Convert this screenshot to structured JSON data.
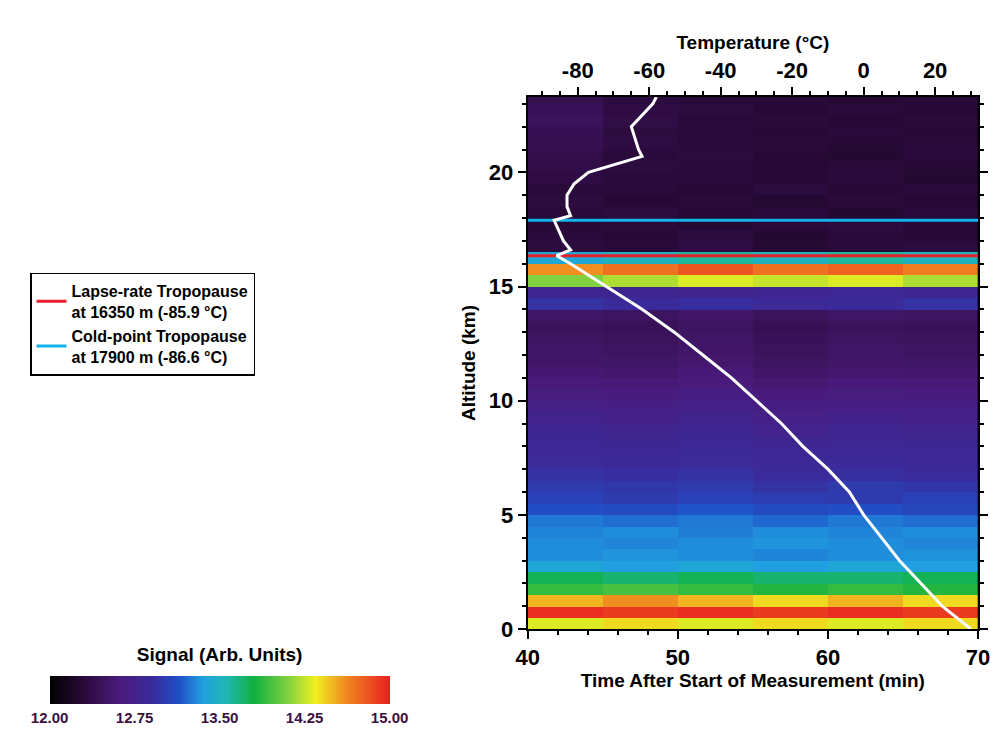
{
  "chart_data": {
    "type": "heatmap",
    "xlabel": "Time After Start of Measurement (min)",
    "ylabel": "Altitude (km)",
    "x2label": "Temperature (°C)",
    "xlim": [
      40,
      70
    ],
    "xticks": [
      40,
      50,
      60,
      70
    ],
    "ylim": [
      0,
      23.3
    ],
    "yticks": [
      0,
      5,
      10,
      15,
      20
    ],
    "x2lim": [
      -94,
      32
    ],
    "x2ticks": [
      -80,
      -60,
      -40,
      -20,
      0,
      20
    ],
    "legend": "left",
    "grid": false,
    "heatmap": {
      "x": [
        42.5,
        47.5,
        52.5,
        57.5,
        62.5,
        67.5
      ],
      "y": [
        0.25,
        0.75,
        1.25,
        1.75,
        2.25,
        2.75,
        3.25,
        3.75,
        4.25,
        4.75,
        5.25,
        5.75,
        6.25,
        6.75,
        7.25,
        7.75,
        8.25,
        8.75,
        9.25,
        9.75,
        10.25,
        10.75,
        11.25,
        11.75,
        12.25,
        12.75,
        13.25,
        13.75,
        14.25,
        14.75,
        15.25,
        15.75,
        16.25,
        16.75,
        17.25,
        17.75,
        18.25,
        18.75,
        19.25,
        19.75,
        20.25,
        20.75,
        21.25,
        21.75,
        22.25,
        22.75,
        23.25
      ],
      "z": [
        [
          14.3,
          14.4,
          14.3,
          14.4,
          14.3,
          14.4
        ],
        [
          14.95,
          14.9,
          14.95,
          14.9,
          14.95,
          14.9
        ],
        [
          14.5,
          14.6,
          14.5,
          14.4,
          14.5,
          14.4
        ],
        [
          13.9,
          13.95,
          13.9,
          13.85,
          13.9,
          13.85
        ],
        [
          13.75,
          13.7,
          13.75,
          13.7,
          13.7,
          13.75
        ],
        [
          13.4,
          13.35,
          13.4,
          13.35,
          13.4,
          13.35
        ],
        [
          13.3,
          13.32,
          13.3,
          13.28,
          13.3,
          13.31
        ],
        [
          13.3,
          13.28,
          13.3,
          13.32,
          13.3,
          13.28
        ],
        [
          13.28,
          13.3,
          13.26,
          13.3,
          13.28,
          13.3
        ],
        [
          13.25,
          13.22,
          13.25,
          13.2,
          13.25,
          13.22
        ],
        [
          13.12,
          13.1,
          13.15,
          13.1,
          13.12,
          13.08
        ],
        [
          13.05,
          13.0,
          13.05,
          13.02,
          13.0,
          13.05
        ],
        [
          13.0,
          12.98,
          13.0,
          12.95,
          13.0,
          12.97
        ],
        [
          12.95,
          12.92,
          12.95,
          12.9,
          12.93,
          12.9
        ],
        [
          12.9,
          12.88,
          12.9,
          12.86,
          12.9,
          12.87
        ],
        [
          12.86,
          12.85,
          12.88,
          12.84,
          12.85,
          12.86
        ],
        [
          12.84,
          12.82,
          12.85,
          12.8,
          12.83,
          12.82
        ],
        [
          12.8,
          12.78,
          12.8,
          12.76,
          12.8,
          12.78
        ],
        [
          12.76,
          12.74,
          12.77,
          12.72,
          12.75,
          12.74
        ],
        [
          12.72,
          12.7,
          12.73,
          12.68,
          12.7,
          12.7
        ],
        [
          12.66,
          12.64,
          12.68,
          12.62,
          12.65,
          12.64
        ],
        [
          12.6,
          12.58,
          12.62,
          12.56,
          12.6,
          12.58
        ],
        [
          12.56,
          12.54,
          12.58,
          12.52,
          12.55,
          12.54
        ],
        [
          12.52,
          12.5,
          12.54,
          12.48,
          12.52,
          12.5
        ],
        [
          12.5,
          12.48,
          12.52,
          12.46,
          12.5,
          12.48
        ],
        [
          12.48,
          12.46,
          12.5,
          12.44,
          12.48,
          12.46
        ],
        [
          12.46,
          12.44,
          12.48,
          12.42,
          12.46,
          12.44
        ],
        [
          12.5,
          12.48,
          12.52,
          12.46,
          12.5,
          12.48
        ],
        [
          12.95,
          12.9,
          12.92,
          12.88,
          12.9,
          12.95
        ],
        [
          12.8,
          12.82,
          12.78,
          12.8,
          12.85,
          12.8
        ],
        [
          14.1,
          14.2,
          14.3,
          14.25,
          14.3,
          14.2
        ],
        [
          14.6,
          14.7,
          14.8,
          14.7,
          14.75,
          14.65
        ],
        [
          13.4,
          13.5,
          13.6,
          13.5,
          13.6,
          13.5
        ],
        [
          12.32,
          12.3,
          12.34,
          12.28,
          12.3,
          12.32
        ],
        [
          12.3,
          12.28,
          12.32,
          12.26,
          12.3,
          12.28
        ],
        [
          12.28,
          12.3,
          12.26,
          12.3,
          12.32,
          12.28
        ],
        [
          12.3,
          12.32,
          12.28,
          12.3,
          12.26,
          12.3
        ],
        [
          12.32,
          12.28,
          12.3,
          12.26,
          12.3,
          12.28
        ],
        [
          12.3,
          12.3,
          12.28,
          12.32,
          12.28,
          12.3
        ],
        [
          12.34,
          12.3,
          12.3,
          12.28,
          12.3,
          12.26
        ],
        [
          12.36,
          12.32,
          12.3,
          12.28,
          12.3,
          12.28
        ],
        [
          12.38,
          12.3,
          12.32,
          12.28,
          12.26,
          12.3
        ],
        [
          12.4,
          12.34,
          12.3,
          12.3,
          12.28,
          12.3
        ],
        [
          12.42,
          12.32,
          12.3,
          12.28,
          12.3,
          12.28
        ],
        [
          12.46,
          12.36,
          12.3,
          12.3,
          12.28,
          12.3
        ],
        [
          12.44,
          12.34,
          12.32,
          12.28,
          12.3,
          12.28
        ],
        [
          12.4,
          12.32,
          12.3,
          12.3,
          12.28,
          12.3
        ]
      ]
    },
    "colorbar": {
      "title": "Signal (Arb. Units)",
      "range": [
        12,
        15
      ],
      "ticks": [
        {
          "value": 12,
          "label": "12.00"
        },
        {
          "value": 12.75,
          "label": "12.75"
        },
        {
          "value": 13.5,
          "label": "13.50"
        },
        {
          "value": 14.25,
          "label": "14.25"
        },
        {
          "value": 15,
          "label": "15.00"
        }
      ]
    },
    "series": [
      {
        "type": "line",
        "axis": "x2",
        "color": "#ffffff",
        "x": [
          30,
          26,
          22,
          16,
          10,
          5,
          0,
          -2,
          -4,
          -10,
          -17,
          -23,
          -30,
          -37,
          -45,
          -53,
          -62,
          -72,
          -82,
          -85.9,
          -82,
          -84,
          -86.6,
          -82,
          -83,
          -83,
          -81,
          -77,
          -62,
          -63,
          -64,
          -65,
          -62,
          -59,
          -58
        ],
        "y": [
          0,
          0.5,
          1,
          2,
          3,
          4,
          5,
          5.5,
          6,
          7,
          8,
          9,
          10,
          11,
          12,
          13,
          14,
          15,
          16,
          16.35,
          16.6,
          17,
          17.9,
          18.1,
          18.5,
          19,
          19.5,
          20,
          20.7,
          21,
          21.5,
          22,
          22.5,
          23,
          23.3
        ]
      },
      {
        "type": "hline",
        "name": "Lapse-rate Tropopause at 16350 m (-85.9 °C)",
        "color": "#e8202a",
        "y": 16.35
      },
      {
        "type": "hline",
        "name": "Cold-point Tropopause at 17900 m (-86.6 °C)",
        "color": "#10b4e8",
        "y": 17.9
      }
    ]
  }
}
